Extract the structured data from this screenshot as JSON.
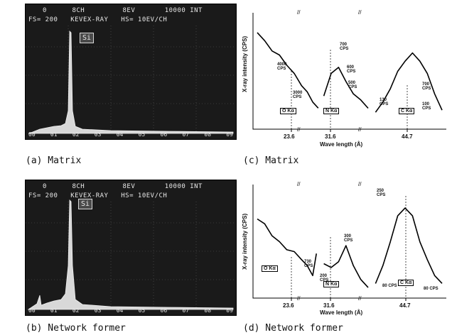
{
  "eds_panels": [
    {
      "header_line1": [
        "0",
        "8CH",
        "8EV",
        "10000 INT"
      ],
      "header_line2": [
        "FS= 200",
        "KEVEX-RAY",
        "HS= 10EV/CH"
      ],
      "peak_label": "Si",
      "axis_ticks": [
        "00",
        "01",
        "02",
        "03",
        "04",
        "05",
        "06",
        "07",
        "08",
        "09"
      ],
      "caption": "(a) Matrix"
    },
    {
      "header_line1": [
        "0",
        "8CH",
        "8EV",
        "10000 INT"
      ],
      "header_line2": [
        "FS= 200",
        "KEVEX-RAY",
        "HS= 10EV/CH"
      ],
      "peak_label": "Si",
      "axis_ticks": [
        "00",
        "01",
        "02",
        "03",
        "04",
        "05",
        "06",
        "07",
        "08",
        "09"
      ],
      "caption": "(b) Network former"
    }
  ],
  "chart_data": [
    {
      "type": "line",
      "caption": "(c) Matrix",
      "xlabel": "Wave length (Å)",
      "ylabel": "X-ray intensity (CPS)",
      "x_ticks": [
        "23.6",
        "31.6",
        "44.7"
      ],
      "peaks": [
        {
          "label": "O Kα",
          "x": 23.6
        },
        {
          "label": "N Kα",
          "x": 31.6
        },
        {
          "label": "C Kα",
          "x": 44.7
        }
      ],
      "annotations": [
        "4000 CPS",
        "3000 CPS",
        "700 CPS",
        "600 CPS",
        "500 CPS",
        "700 CPS",
        "130 CPS",
        "100 CPS"
      ],
      "series": [
        {
          "values": [
            [
              0,
              90
            ],
            [
              4,
              80
            ],
            [
              8,
              72
            ],
            [
              12,
              66
            ],
            [
              16,
              58
            ],
            [
              20,
              48
            ],
            [
              24,
              38
            ],
            [
              27,
              30
            ],
            [
              30,
              22
            ],
            [
              33,
              14
            ],
            [
              36,
              28
            ],
            [
              40,
              48
            ],
            [
              44,
              56
            ],
            [
              48,
              40
            ],
            [
              52,
              30
            ],
            [
              56,
              22
            ],
            [
              60,
              16
            ],
            [
              64,
              12
            ],
            [
              68,
              20
            ],
            [
              72,
              35
            ],
            [
              76,
              50
            ],
            [
              80,
              62
            ],
            [
              84,
              68
            ],
            [
              88,
              62
            ],
            [
              92,
              48
            ],
            [
              96,
              30
            ],
            [
              100,
              12
            ]
          ]
        }
      ]
    },
    {
      "type": "line",
      "caption": "(d) Network former",
      "xlabel": "Wave length (Å)",
      "ylabel": "X-ray intensity (CPS)",
      "x_ticks": [
        "23.6",
        "31.6",
        "44.7"
      ],
      "peaks": [
        {
          "label": "O Kα",
          "x": 23.6
        },
        {
          "label": "N Kα",
          "x": 31.6
        },
        {
          "label": "C Kα",
          "x": 44.7
        }
      ],
      "annotations": [
        "300 CPS",
        "730 CPS",
        "200 CPS",
        "250 CPS",
        "80 CPS",
        "80 CPS"
      ],
      "series": [
        {
          "values": [
            [
              0,
              75
            ],
            [
              4,
              68
            ],
            [
              8,
              58
            ],
            [
              12,
              50
            ],
            [
              16,
              44
            ],
            [
              20,
              40
            ],
            [
              24,
              34
            ],
            [
              27,
              26
            ],
            [
              30,
              18
            ],
            [
              32,
              38
            ],
            [
              36,
              30
            ],
            [
              40,
              24
            ],
            [
              44,
              32
            ],
            [
              48,
              46
            ],
            [
              52,
              28
            ],
            [
              56,
              12
            ],
            [
              60,
              6
            ],
            [
              64,
              10
            ],
            [
              68,
              26
            ],
            [
              72,
              52
            ],
            [
              76,
              76
            ],
            [
              80,
              86
            ],
            [
              84,
              76
            ],
            [
              88,
              52
            ],
            [
              92,
              32
            ],
            [
              96,
              18
            ],
            [
              100,
              8
            ]
          ]
        }
      ]
    }
  ]
}
